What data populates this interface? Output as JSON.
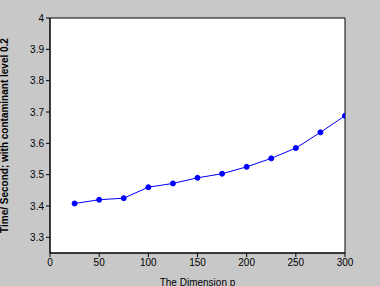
{
  "chart_data": {
    "type": "line",
    "x_label": "The Dimension p",
    "y_label": "Time/ Second; with contaminant level 0.2",
    "x": [
      25,
      50,
      75,
      100,
      125,
      150,
      175,
      200,
      225,
      250,
      275,
      300
    ],
    "values": [
      3.408,
      3.42,
      3.425,
      3.46,
      3.472,
      3.49,
      3.503,
      3.525,
      3.552,
      3.585,
      3.635,
      3.688
    ],
    "color": "#0000ff",
    "marker": "dot",
    "line_style": "solid",
    "xlim": [
      0,
      300
    ],
    "xticks": [
      0,
      50,
      100,
      150,
      200,
      250,
      300
    ],
    "ylim": [
      3.25,
      4
    ],
    "yticks": [
      3.3,
      3.4,
      3.5,
      3.6,
      3.7,
      3.8,
      3.9,
      4
    ],
    "grid": false
  }
}
